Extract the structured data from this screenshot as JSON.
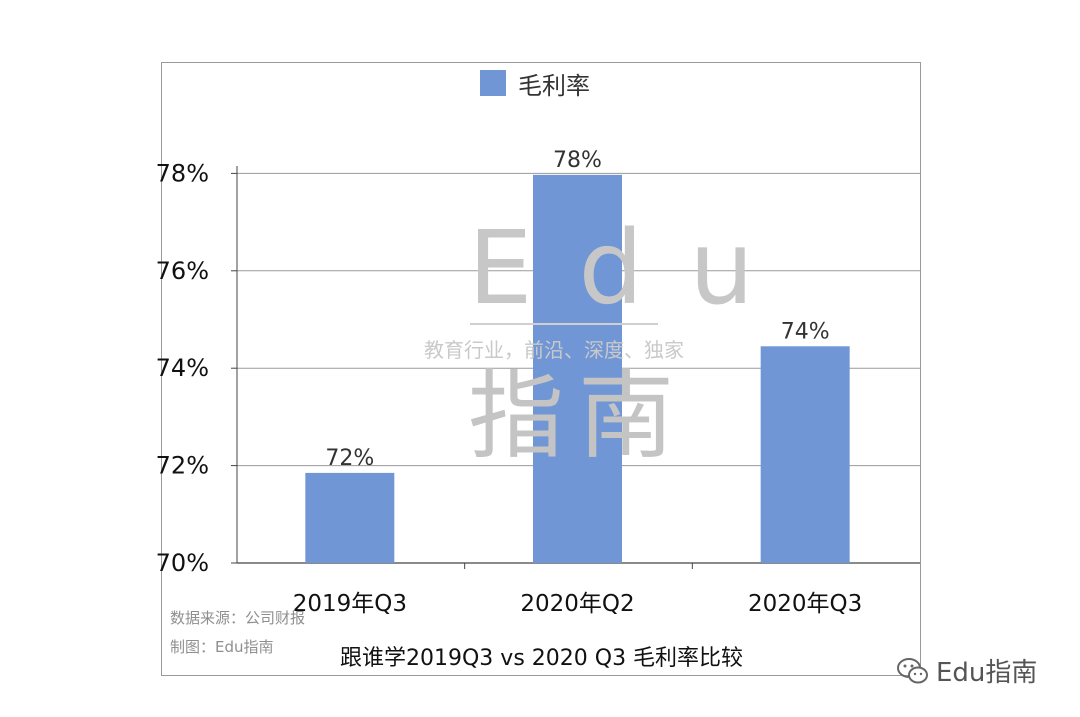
{
  "chart_data": {
    "type": "bar",
    "categories": [
      "2019年Q3",
      "2020年Q2",
      "2020年Q3"
    ],
    "series": [
      {
        "name": "毛利率",
        "values": [
          71.85,
          77.97,
          74.45
        ],
        "data_labels": [
          "72%",
          "78%",
          "74%"
        ]
      }
    ],
    "ylim": [
      70,
      80
    ],
    "yticks": [
      70,
      72,
      74,
      76,
      78
    ],
    "ytick_labels": [
      "70%",
      "72%",
      "74%",
      "76%",
      "78%"
    ],
    "title": "跟谁学2019Q3 vs 2020 Q3  毛利率比较",
    "grid": true,
    "legend": "top-center",
    "bar_color": "#7096d6"
  },
  "notes": {
    "source": "数据来源：公司财报",
    "maker": "制图：Edu指南"
  },
  "watermark": {
    "edu": "Edu",
    "slogan": "教育行业，前沿、深度、独家",
    "zhinan": "指南"
  },
  "brand": {
    "label": "Edu指南",
    "icon": "wechat-icon"
  }
}
